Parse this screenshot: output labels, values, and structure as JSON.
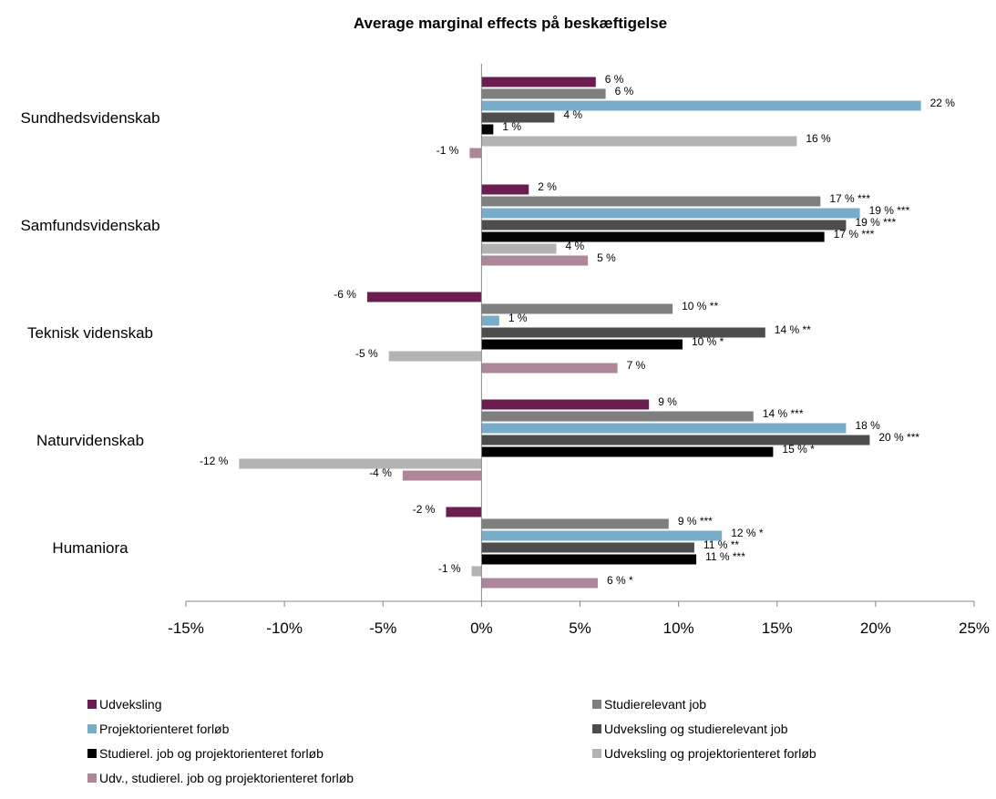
{
  "chart_data": {
    "type": "bar",
    "orientation": "horizontal",
    "title": "Average marginal effects på beskæftigelse",
    "categories": [
      "Sundhedsvidenskab",
      "Samfundsvidenskab",
      "Teknisk videnskab",
      "Naturvidenskab",
      "Humaniora"
    ],
    "x_ticks": [
      "-15%",
      "-10%",
      "-5%",
      "0%",
      "5%",
      "10%",
      "15%",
      "20%",
      "25%"
    ],
    "xlim": [
      -15,
      25
    ],
    "grid": false,
    "legend_position": "bottom",
    "series": [
      {
        "name": "Udveksling",
        "color": "#6b1d52",
        "values": [
          5.8,
          2.4,
          -5.8,
          8.5,
          -1.8
        ],
        "labels": [
          "6 %",
          "2 %",
          "-6 %",
          "9 %",
          "-2 %"
        ]
      },
      {
        "name": "Studierelevant job",
        "color": "#7f7f7f",
        "values": [
          6.3,
          17.2,
          9.7,
          13.8,
          9.5
        ],
        "labels": [
          "6 %",
          "17 % ***",
          "10 % **",
          "14 % ***",
          "9 % ***"
        ]
      },
      {
        "name": "Projektorienteret forløb",
        "color": "#77adc9",
        "values": [
          22.3,
          19.2,
          0.9,
          18.5,
          12.2
        ],
        "labels": [
          "22 %",
          "19 % ***",
          "1 %",
          "18 %",
          "12 % *"
        ]
      },
      {
        "name": "Udveksling og studierelevant job",
        "color": "#4d4d4d",
        "values": [
          3.7,
          18.5,
          14.4,
          19.7,
          10.8
        ],
        "labels": [
          "4 %",
          "19 % ***",
          "14 % **",
          "20 % ***",
          "11 % **"
        ]
      },
      {
        "name": "Studierel. job og projektorienteret forløb",
        "color": "#000000",
        "values": [
          0.6,
          17.4,
          10.2,
          14.8,
          10.9
        ],
        "labels": [
          "1 %",
          "17 % ***",
          "10 % *",
          "15 % *",
          "11 % ***"
        ]
      },
      {
        "name": "Udveksling og projektorienteret forløb",
        "color": "#b3b3b3",
        "values": [
          16.0,
          3.8,
          -4.7,
          -12.3,
          -0.5
        ],
        "labels": [
          "16 %",
          "4 %",
          "-5 %",
          "-12 %",
          "-1 %"
        ]
      },
      {
        "name": "Udv., studierel. job og projektorienteret forløb",
        "color": "#ae8699",
        "values": [
          -0.6,
          5.4,
          6.9,
          -4.0,
          5.9
        ],
        "labels": [
          "-1 %",
          "5 %",
          "7 %",
          "-4 %",
          "6 % *"
        ]
      }
    ]
  }
}
